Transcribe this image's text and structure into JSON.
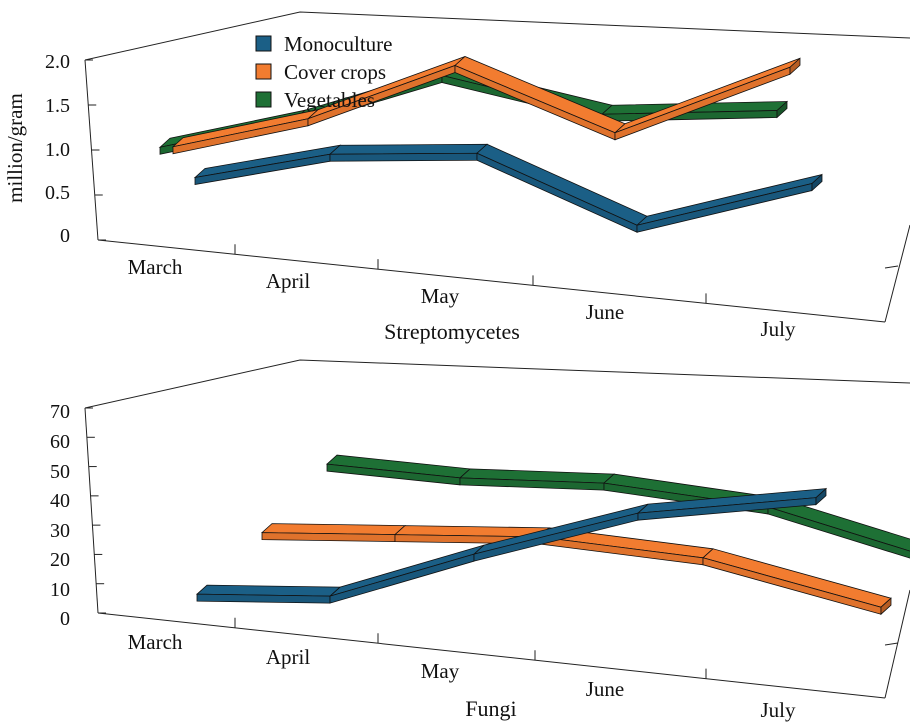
{
  "chart_data": [
    {
      "type": "line",
      "style": "3d-ribbon",
      "title": "Streptomycetes",
      "ylabel": "million/gram",
      "xlabel": "",
      "categories": [
        "March",
        "April",
        "May",
        "June",
        "July"
      ],
      "yticks": [
        "0",
        "0.5",
        "1.0",
        "1.5",
        "2.0"
      ],
      "ylim": [
        0,
        2.0
      ],
      "grid": false,
      "legend": "top-left",
      "series": [
        {
          "name": "Monoculture",
          "color": "#1b5f86",
          "values": [
            0.3,
            0.45,
            0.45,
            0.05,
            0.3
          ]
        },
        {
          "name": "Cover crops",
          "color": "#f27c30",
          "values": [
            0.75,
            0.95,
            1.5,
            1.15,
            1.65
          ]
        },
        {
          "name": "Vegetables",
          "color": "#1e7035",
          "values": [
            0.85,
            1.05,
            1.5,
            1.45,
            1.3
          ]
        }
      ]
    },
    {
      "type": "line",
      "style": "3d-ribbon",
      "title": "Fungi",
      "ylabel": "",
      "xlabel": "",
      "categories": [
        "March",
        "April",
        "May",
        "June",
        "July"
      ],
      "yticks": [
        "0",
        "10",
        "20",
        "30",
        "40",
        "50",
        "60",
        "70"
      ],
      "ylim": [
        0,
        70
      ],
      "grid": false,
      "legend": "none",
      "series": [
        {
          "name": "Monoculture",
          "color": "#1b5f86",
          "values": [
            3,
            3,
            23,
            43,
            53
          ]
        },
        {
          "name": "Cover crops",
          "color": "#f27c30",
          "values": [
            12,
            12,
            17,
            16,
            4
          ]
        },
        {
          "name": "Vegetables",
          "color": "#1e7035",
          "values": [
            22,
            18,
            22,
            20,
            6
          ]
        }
      ]
    }
  ],
  "legend": {
    "items": [
      {
        "label": "Monoculture",
        "color": "#1b5f86"
      },
      {
        "label": "Cover crops",
        "color": "#f27c30"
      },
      {
        "label": "Vegetables",
        "color": "#1e7035"
      }
    ]
  }
}
